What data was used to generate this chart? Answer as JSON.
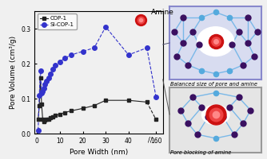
{
  "cop1_x": [
    0.5,
    1.0,
    1.5,
    2.0,
    2.5,
    3.0,
    3.5,
    4.0,
    5.0,
    6.0,
    7.0,
    8.0,
    10.0,
    12.0,
    15.0,
    20.0,
    25.0,
    30.0,
    40.0,
    48.0,
    160.0
  ],
  "cop1_y": [
    0.04,
    0.08,
    0.16,
    0.085,
    0.04,
    0.035,
    0.038,
    0.04,
    0.042,
    0.045,
    0.048,
    0.052,
    0.055,
    0.06,
    0.065,
    0.072,
    0.08,
    0.095,
    0.095,
    0.09,
    0.04
  ],
  "sicop1_x": [
    0.5,
    1.0,
    1.5,
    2.0,
    2.5,
    3.0,
    3.5,
    4.0,
    5.0,
    6.0,
    7.0,
    8.0,
    10.0,
    12.0,
    15.0,
    20.0,
    25.0,
    30.0,
    40.0,
    48.0,
    160.0
  ],
  "sicop1_y": [
    0.01,
    0.11,
    0.18,
    0.115,
    0.12,
    0.13,
    0.14,
    0.15,
    0.16,
    0.17,
    0.185,
    0.195,
    0.205,
    0.215,
    0.225,
    0.235,
    0.245,
    0.305,
    0.225,
    0.245,
    0.105
  ],
  "xlabel": "Pore Width (nm)",
  "ylabel": "Pore Volume (cm³/g)",
  "cop1_label": "COP-1",
  "sicop1_label": "SI-COP-1",
  "amine_label": "Amine",
  "label1": "Balanced size of pore and amine",
  "label2": "Pore blocking of amine",
  "ylim": [
    0.0,
    0.35
  ],
  "cop1_color": "#222222",
  "sicop1_color": "#3333cc",
  "amine_dot_color": "#cc1111",
  "fig_bg": "#f0f0f0"
}
